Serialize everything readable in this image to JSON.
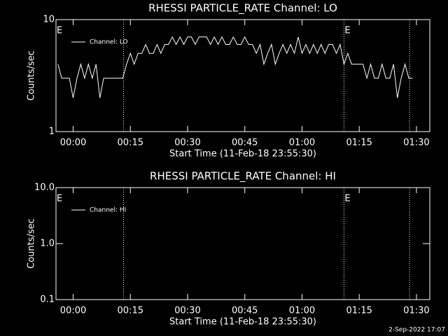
{
  "chart_data": [
    {
      "type": "line",
      "title": "RHESSI PARTICLE_RATE Channel: LO",
      "xlabel": "Start Time (11-Feb-18 23:55:30)",
      "ylabel": "Counts/sec",
      "log_y": true,
      "xlim": [
        -4.5,
        93.5
      ],
      "ylim": [
        1,
        10
      ],
      "xticks": [
        {
          "value": 0,
          "label": "00:00"
        },
        {
          "value": 15,
          "label": "00:15"
        },
        {
          "value": 30,
          "label": "00:30"
        },
        {
          "value": 45,
          "label": "00:45"
        },
        {
          "value": 60,
          "label": "01:00"
        },
        {
          "value": 75,
          "label": "01:15"
        },
        {
          "value": 90,
          "label": "01:30"
        }
      ],
      "yticks": [
        1,
        10
      ],
      "vlines": [
        13.2,
        71,
        88.2
      ],
      "annotations": [
        {
          "text": "E",
          "x": -4.5
        },
        {
          "text": "E",
          "x": 71
        }
      ],
      "x": [
        -4,
        -3,
        -2,
        -1,
        0,
        1,
        2,
        3,
        4,
        5,
        6,
        7,
        8,
        9,
        10,
        11,
        12,
        13,
        14,
        15,
        16,
        17,
        18,
        19,
        20,
        21,
        22,
        23,
        24,
        25,
        26,
        27,
        28,
        29,
        30,
        31,
        32,
        33,
        34,
        35,
        36,
        37,
        38,
        39,
        40,
        41,
        42,
        43,
        44,
        45,
        46,
        47,
        48,
        49,
        50,
        51,
        52,
        53,
        54,
        55,
        56,
        57,
        58,
        59,
        60,
        61,
        62,
        63,
        64,
        65,
        66,
        67,
        68,
        69,
        70,
        71,
        72,
        73,
        74,
        75,
        76,
        77,
        78,
        79,
        80,
        81,
        82,
        83,
        84,
        85,
        86,
        87,
        88,
        89
      ],
      "series": [
        {
          "name": "Channel: LO",
          "color": "#ffffff",
          "values": [
            4,
            3,
            3,
            3,
            2,
            3,
            4,
            3,
            4,
            3,
            4,
            2,
            3,
            3,
            3,
            3,
            3,
            3,
            4,
            5,
            4,
            5,
            5,
            6,
            5,
            5,
            6,
            5,
            6,
            6,
            7,
            6,
            7,
            6,
            7,
            7,
            6,
            7,
            7,
            7,
            6,
            7,
            6,
            7,
            6,
            6,
            7,
            6,
            6,
            7,
            6,
            6,
            5,
            6,
            4,
            5,
            6,
            4,
            5,
            6,
            5,
            6,
            5,
            7,
            5,
            6,
            5,
            6,
            5,
            6,
            5,
            6,
            6,
            5,
            6,
            4,
            5,
            4,
            4,
            4,
            4,
            3,
            4,
            3,
            3,
            4,
            3,
            3,
            4,
            2,
            3,
            4,
            3,
            3
          ]
        }
      ]
    },
    {
      "type": "line",
      "title": "RHESSI PARTICLE_RATE Channel: HI",
      "xlabel": "Start Time (11-Feb-18 23:55:30)",
      "ylabel": "Counts/sec",
      "log_y": true,
      "xlim": [
        -4.5,
        93.5
      ],
      "ylim": [
        0.1,
        10
      ],
      "xticks": [
        {
          "value": 0,
          "label": "00:00"
        },
        {
          "value": 15,
          "label": "00:15"
        },
        {
          "value": 30,
          "label": "00:30"
        },
        {
          "value": 45,
          "label": "00:45"
        },
        {
          "value": 60,
          "label": "01:00"
        },
        {
          "value": 75,
          "label": "01:15"
        },
        {
          "value": 90,
          "label": "01:30"
        }
      ],
      "yticks": [
        0.1,
        {
          "value": 1,
          "label": "1.0"
        },
        {
          "value": 10,
          "label": "10.0"
        }
      ],
      "vlines": [
        13.2,
        71,
        88.2
      ],
      "annotations": [
        {
          "text": "E",
          "x": -4.5
        },
        {
          "text": "E",
          "x": 71
        }
      ],
      "x": [],
      "series": [
        {
          "name": "Channel: HI",
          "color": "#ffffff",
          "values": []
        }
      ]
    }
  ],
  "footer": "2-Sep-2022 17:07"
}
